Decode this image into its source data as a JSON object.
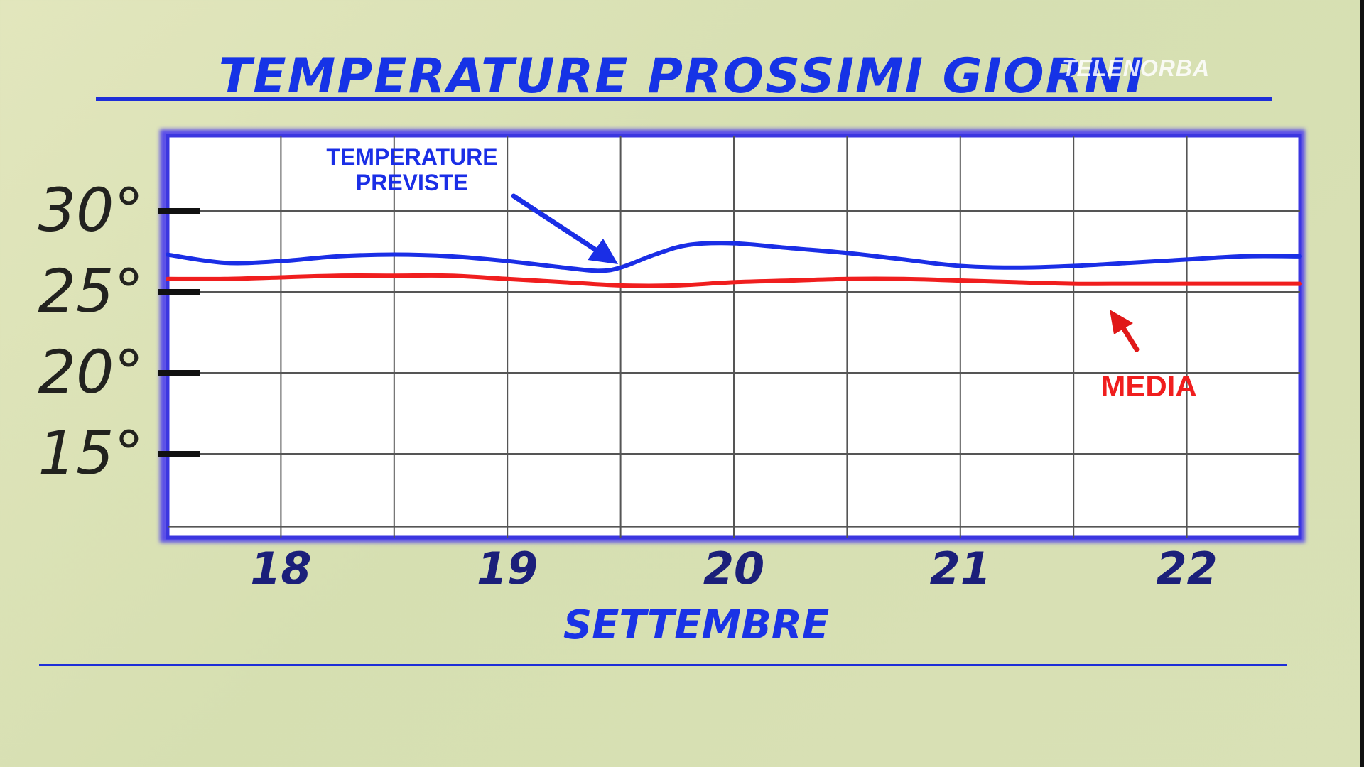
{
  "title": "TEMPERATURE PROSSIMI GIORNI",
  "watermark": "TELENORBA",
  "chart_data": {
    "type": "line",
    "xlabel": "SETTEMBRE",
    "ylabel": "",
    "categories": [
      "18",
      "19",
      "20",
      "21",
      "22"
    ],
    "yticks": [
      "30°",
      "25°",
      "20°",
      "15°"
    ],
    "ytick_values": [
      30,
      25,
      20,
      15
    ],
    "xlim": [
      17.5,
      22.5
    ],
    "ylim": [
      10,
      34
    ],
    "grid": true,
    "series": [
      {
        "name": "TEMPERATURE PREVISTE",
        "color": "#1a2ee6",
        "x": [
          17.5,
          17.75,
          18.0,
          18.25,
          18.5,
          18.75,
          19.0,
          19.25,
          19.4,
          19.5,
          19.65,
          19.8,
          20.0,
          20.25,
          20.5,
          20.75,
          21.0,
          21.25,
          21.5,
          21.75,
          22.0,
          22.25,
          22.5
        ],
        "values": [
          27.3,
          26.8,
          26.9,
          27.2,
          27.3,
          27.2,
          26.9,
          26.5,
          26.3,
          26.5,
          27.3,
          27.9,
          28.0,
          27.7,
          27.4,
          27.0,
          26.6,
          26.5,
          26.6,
          26.8,
          27.0,
          27.2,
          27.2
        ]
      },
      {
        "name": "MEDIA",
        "color": "#f01e1e",
        "x": [
          17.5,
          17.75,
          18.0,
          18.25,
          18.5,
          18.75,
          19.0,
          19.25,
          19.5,
          19.75,
          20.0,
          20.25,
          20.5,
          20.75,
          21.0,
          21.25,
          21.5,
          21.75,
          22.0,
          22.25,
          22.5
        ],
        "values": [
          25.8,
          25.8,
          25.9,
          26.0,
          26.0,
          26.0,
          25.8,
          25.6,
          25.4,
          25.4,
          25.6,
          25.7,
          25.8,
          25.8,
          25.7,
          25.6,
          25.5,
          25.5,
          25.5,
          25.5,
          25.5
        ]
      }
    ],
    "annotations": [
      {
        "text": "TEMPERATURE",
        "color": "#1a2ee6"
      },
      {
        "text": "PREVISTE",
        "color": "#1a2ee6"
      },
      {
        "text": "MEDIA",
        "color": "#f01e1e"
      }
    ]
  }
}
